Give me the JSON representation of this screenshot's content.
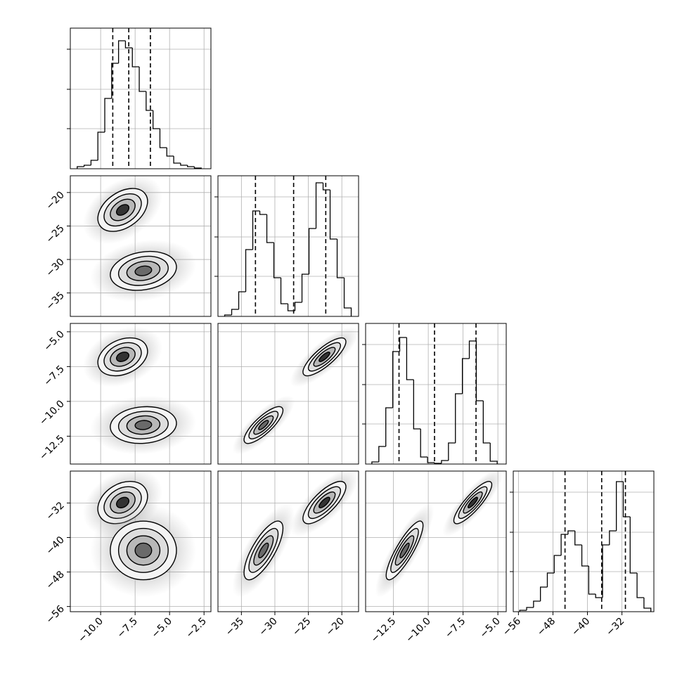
{
  "chart_data": {
    "type": "corner",
    "params": [
      {
        "lim": [
          -12.2,
          -2.0
        ],
        "ticks": [
          {
            "value": -10,
            "label": "−10.0"
          },
          {
            "value": -7.5,
            "label": "−7.5"
          },
          {
            "value": -5,
            "label": "−5.0"
          },
          {
            "value": -2.5,
            "label": "−2.5"
          }
        ],
        "quantiles": [
          -9.12,
          -7.96,
          -6.39
        ],
        "bins": [
          -11.7,
          -11.2,
          -10.7,
          -10.2,
          -9.7,
          -9.2,
          -8.7,
          -8.2,
          -7.7,
          -7.2,
          -6.7,
          -6.2,
          -5.7,
          -5.2,
          -4.7,
          -4.2,
          -3.7,
          -3.2,
          -2.7
        ],
        "counts": [
          3,
          5,
          12,
          52,
          100,
          150,
          182,
          172,
          145,
          110,
          83,
          57,
          30,
          18,
          8,
          5,
          3,
          1
        ]
      },
      {
        "lim": [
          -38.5,
          -17.5
        ],
        "ticks": [
          {
            "value": -35,
            "label": "−35"
          },
          {
            "value": -30,
            "label": "−30"
          },
          {
            "value": -25,
            "label": "−25"
          },
          {
            "value": -20,
            "label": "−20"
          }
        ],
        "quantiles": [
          -32.9,
          -27.2,
          -22.4
        ],
        "bins": [
          -37.5,
          -36.45,
          -35.4,
          -34.35,
          -33.3,
          -32.25,
          -31.2,
          -30.15,
          -29.1,
          -28.05,
          -27,
          -25.95,
          -24.9,
          -23.85,
          -22.8,
          -21.75,
          -20.7,
          -19.65,
          -18.6
        ],
        "counts": [
          2,
          10,
          35,
          95,
          150,
          145,
          105,
          55,
          18,
          8,
          20,
          60,
          125,
          190,
          180,
          110,
          55,
          12
        ]
      },
      {
        "lim": [
          -14.5,
          -4.4
        ],
        "ticks": [
          {
            "value": -12.5,
            "label": "−12.5"
          },
          {
            "value": -10,
            "label": "−10.0"
          },
          {
            "value": -7.5,
            "label": "−7.5"
          },
          {
            "value": -5,
            "label": "−5.0"
          }
        ],
        "quantiles": [
          -12.1,
          -9.55,
          -6.57
        ],
        "bins": [
          -14.05,
          -13.55,
          -13.05,
          -12.55,
          -12.05,
          -11.55,
          -11.05,
          -10.55,
          -10.05,
          -9.55,
          -9.05,
          -8.55,
          -8.05,
          -7.55,
          -7.05,
          -6.55,
          -6.05,
          -5.55,
          -5.05
        ],
        "counts": [
          3,
          25,
          80,
          160,
          180,
          120,
          50,
          10,
          2,
          1,
          5,
          30,
          100,
          150,
          175,
          90,
          30,
          4
        ]
      },
      {
        "lim": [
          -57.2,
          -24.6
        ],
        "ticks": [
          {
            "value": -56,
            "label": "−56"
          },
          {
            "value": -48,
            "label": "−48"
          },
          {
            "value": -40,
            "label": "−40"
          },
          {
            "value": -32,
            "label": "−32"
          }
        ],
        "quantiles": [
          -45.2,
          -36.7,
          -31.2
        ],
        "bins": [
          -55.7,
          -54.1,
          -52.5,
          -50.9,
          -49.3,
          -47.7,
          -46.1,
          -44.5,
          -42.9,
          -41.3,
          -39.7,
          -38.1,
          -36.5,
          -34.9,
          -33.3,
          -31.7,
          -30.1,
          -28.5,
          -26.9,
          -25.3
        ],
        "counts": [
          2,
          6,
          15,
          35,
          55,
          80,
          110,
          115,
          95,
          65,
          25,
          20,
          95,
          115,
          185,
          135,
          55,
          20,
          5
        ]
      }
    ],
    "hist_ylim": [
      0,
      200
    ],
    "hist_yticks": [
      57,
      113,
      170
    ],
    "levels": [
      0.5,
      1,
      1.5,
      2
    ],
    "modes": [
      {
        "mean": [
          -8.4,
          -22.6,
          -6.8,
          -31.9
        ],
        "sigma": [
          0.9,
          1.6,
          0.68,
          2.45
        ]
      },
      {
        "mean": [
          -6.9,
          -31.7,
          -11.7,
          -43.0
        ],
        "sigma": [
          1.2,
          1.45,
          0.66,
          3.4
        ]
      }
    ],
    "pairs": [
      {
        "x": 0,
        "y": 1,
        "corr": [
          0.4,
          0.2
        ]
      },
      {
        "x": 0,
        "y": 2,
        "corr": [
          0.3,
          0.1
        ]
      },
      {
        "x": 1,
        "y": 2,
        "corr": [
          0.8,
          0.8
        ]
      },
      {
        "x": 0,
        "y": 3,
        "corr": [
          0.3,
          0.0
        ]
      },
      {
        "x": 1,
        "y": 3,
        "corr": [
          0.75,
          0.75
        ]
      },
      {
        "x": 2,
        "y": 3,
        "corr": [
          0.85,
          0.85
        ]
      }
    ],
    "grid": true
  }
}
